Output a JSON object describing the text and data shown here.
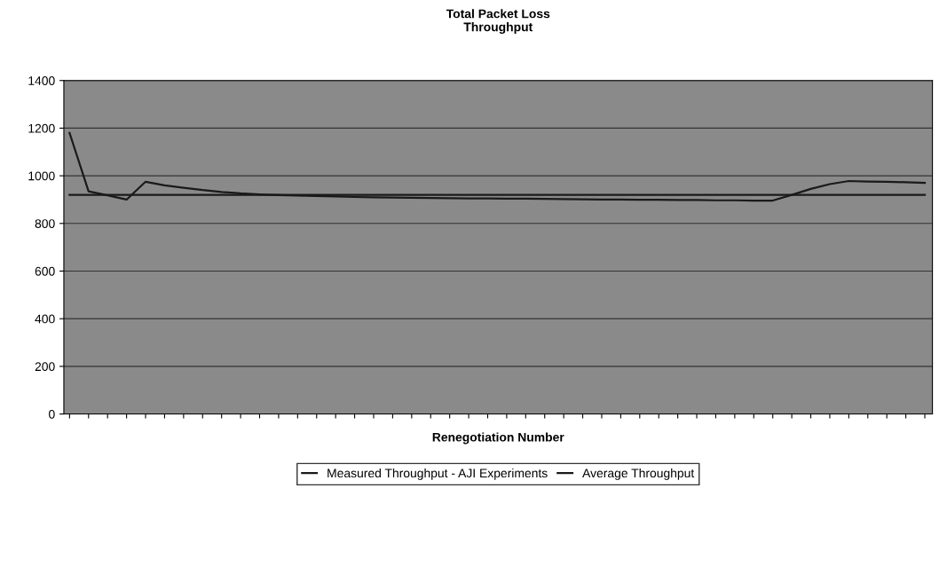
{
  "chart_data": {
    "type": "line",
    "title": "Total Packet Loss\nThroughput",
    "xlabel": "Renegotiation Number",
    "categories": [
      null,
      null,
      null,
      null,
      null,
      null,
      null,
      null,
      null,
      null,
      null,
      null,
      null,
      null,
      null,
      null,
      null,
      null,
      null,
      null,
      null,
      null,
      null,
      null,
      null,
      null,
      null,
      null,
      null,
      null,
      null,
      null,
      null,
      null,
      null,
      null,
      null,
      null,
      null,
      null,
      null,
      null,
      null,
      null,
      null,
      null
    ],
    "series": [
      {
        "name": "Measured Throughput - AJI Experiments",
        "color": "#1a1a1a",
        "values": [
          1180,
          935,
          918,
          900,
          975,
          960,
          950,
          940,
          932,
          926,
          922,
          919,
          917,
          915,
          913,
          911,
          910,
          909,
          908,
          907,
          906,
          905,
          905,
          904,
          904,
          903,
          902,
          901,
          900,
          900,
          899,
          899,
          898,
          898,
          897,
          897,
          896,
          896,
          920,
          945,
          965,
          978,
          976,
          975,
          973,
          970
        ]
      },
      {
        "name": "Average Throughput",
        "color": "#1a1a1a",
        "values": [
          920,
          920,
          920,
          920,
          920,
          920,
          920,
          920,
          920,
          920,
          920,
          920,
          920,
          920,
          920,
          920,
          920,
          920,
          920,
          920,
          920,
          920,
          920,
          920,
          920,
          920,
          920,
          920,
          920,
          920,
          920,
          920,
          920,
          920,
          920,
          920,
          920,
          920,
          920,
          920,
          920,
          920,
          920,
          920,
          920,
          920
        ]
      }
    ],
    "ylim": [
      0,
      1400
    ],
    "yticks": [
      0,
      200,
      400,
      600,
      800,
      1000,
      1200,
      1400
    ],
    "grid": "y",
    "legend": "bottom",
    "marker": "none",
    "line_style": "solid"
  }
}
